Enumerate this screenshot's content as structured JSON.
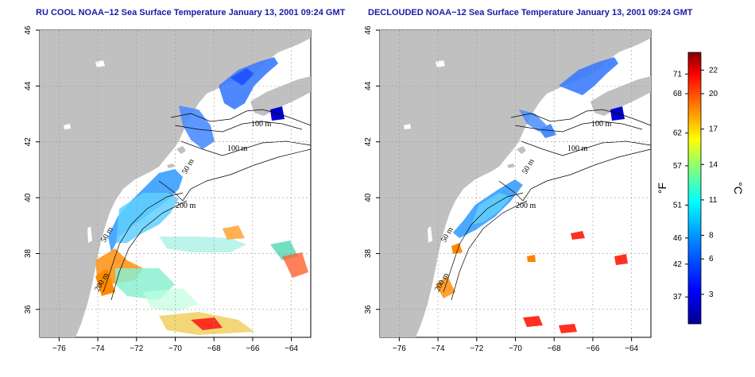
{
  "panels": [
    {
      "id": "left",
      "title": "RU COOL NOAA−12 Sea Surface Temperature January 13, 2001 09:24 GMT",
      "contour_labels": [
        "100 m",
        "100 m",
        "50 m",
        "200 m",
        "50 m",
        "200 m"
      ]
    },
    {
      "id": "right",
      "title": "DECLOUDED NOAA−12 Sea Surface Temperature January 13, 2001 09:24 GMT",
      "contour_labels": [
        "100 m",
        "100 m",
        "50 m",
        "200 m",
        "50 m",
        "200 m"
      ]
    }
  ],
  "axes": {
    "x_ticks": [
      "−76",
      "−74",
      "−72",
      "−70",
      "−68",
      "−66",
      "−64"
    ],
    "y_ticks": [
      "36",
      "38",
      "40",
      "42",
      "44",
      "46"
    ],
    "x_range": [
      -77,
      -63
    ],
    "y_range": [
      35,
      46
    ]
  },
  "colorbar": {
    "f_label": "°F",
    "c_label": "°C",
    "f_ticks": [
      "71",
      "68",
      "62",
      "57",
      "51",
      "46",
      "42",
      "37"
    ],
    "c_ticks": [
      "22",
      "20",
      "17",
      "14",
      "11",
      "8",
      "6",
      "3"
    ],
    "colors": [
      "#00008f",
      "#0000ff",
      "#0080ff",
      "#00ffff",
      "#80ff80",
      "#ffff00",
      "#ff8000",
      "#ff0000",
      "#800000"
    ]
  },
  "colors": {
    "land": "#c0c0c0",
    "water": "#ffffff",
    "title": "#1a1aa6"
  }
}
